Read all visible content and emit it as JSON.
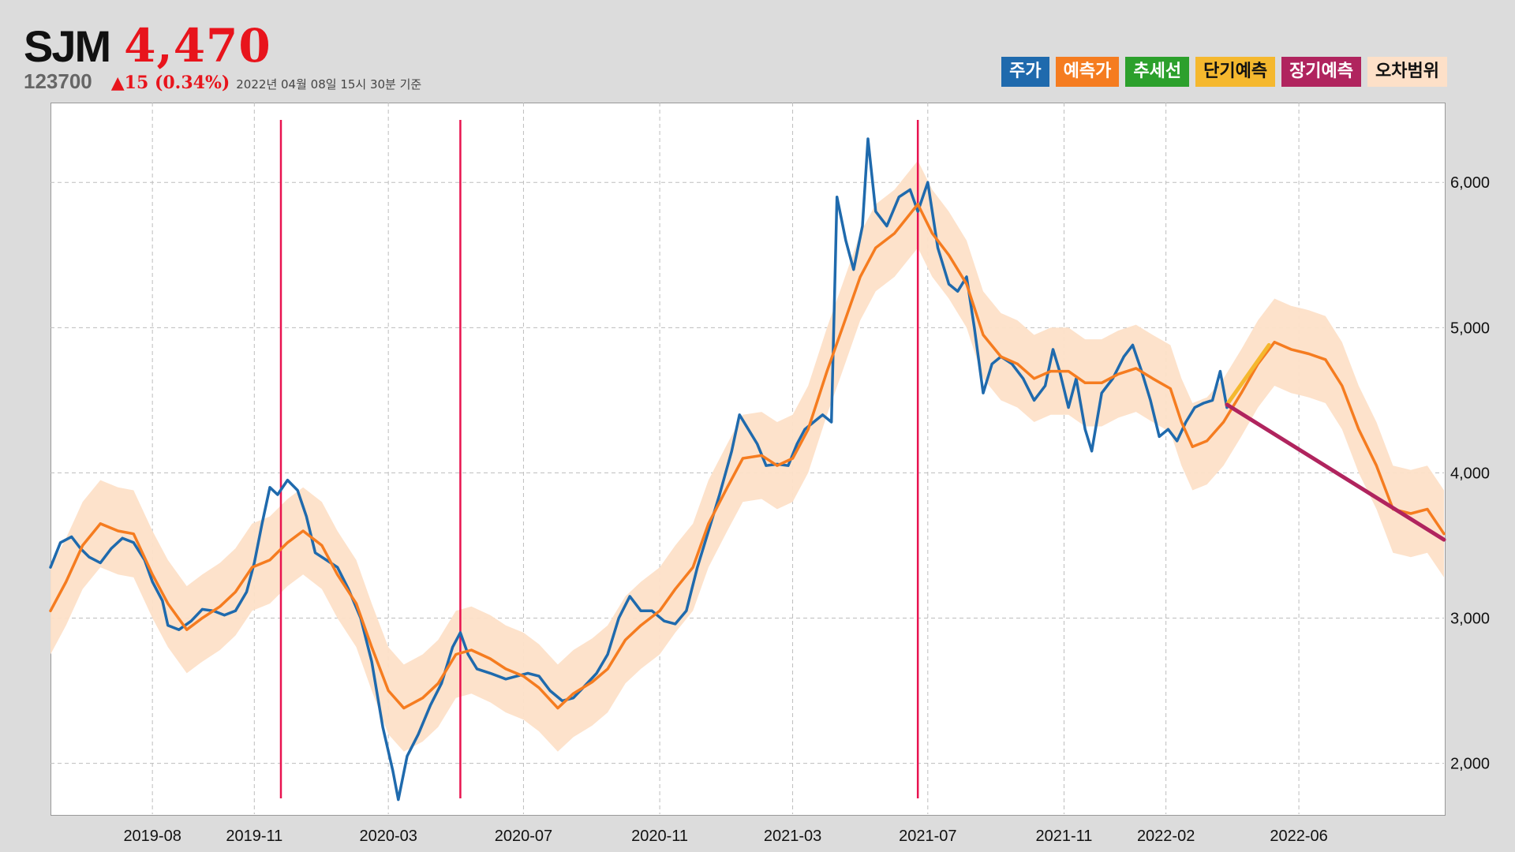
{
  "header": {
    "ticker": "SJM",
    "price": "4,470",
    "code": "123700",
    "change": "▲15 (0.34%)",
    "timestamp": "2022년 04월 08일 15시 30분 기준"
  },
  "legend": [
    {
      "label": "주가",
      "color": "#1f6aad",
      "text_color": "#ffffff"
    },
    {
      "label": "예측가",
      "color": "#f57c20",
      "text_color": "#ffffff"
    },
    {
      "label": "추세선",
      "color": "#2ca02c",
      "text_color": "#ffffff"
    },
    {
      "label": "단기예측",
      "color": "#f5b82e",
      "text_color": "#111111"
    },
    {
      "label": "장기예측",
      "color": "#b0245e",
      "text_color": "#ffffff"
    },
    {
      "label": "오차범위",
      "color": "#fde0c8",
      "text_color": "#111111"
    }
  ],
  "chart_data": {
    "type": "line",
    "title": "",
    "xlabel": "",
    "ylabel": "",
    "x_ticks": [
      "2019-08",
      "2019-11",
      "2020-03",
      "2020-07",
      "2020-11",
      "2021-03",
      "2021-07",
      "2021-11",
      "2022-02",
      "2022-06"
    ],
    "y_ticks": [
      "2,000",
      "3,000",
      "4,000",
      "5,000",
      "6,000"
    ],
    "x_range": [
      "2019-05-01",
      "2022-10-10"
    ],
    "ylim": [
      1650,
      6550
    ],
    "grid": true,
    "y_axis_position": "right",
    "vertical_markers": [
      "2019-11-25",
      "2020-05-05",
      "2021-06-22"
    ],
    "series": [
      {
        "name": "주가",
        "color": "#1f6aad",
        "points": [
          [
            "2019-05-01",
            3350
          ],
          [
            "2019-05-10",
            3520
          ],
          [
            "2019-05-20",
            3560
          ],
          [
            "2019-05-28",
            3480
          ],
          [
            "2019-06-05",
            3420
          ],
          [
            "2019-06-15",
            3380
          ],
          [
            "2019-06-25",
            3480
          ],
          [
            "2019-07-05",
            3550
          ],
          [
            "2019-07-15",
            3520
          ],
          [
            "2019-07-25",
            3400
          ],
          [
            "2019-08-01",
            3250
          ],
          [
            "2019-08-10",
            3120
          ],
          [
            "2019-08-15",
            2950
          ],
          [
            "2019-08-25",
            2920
          ],
          [
            "2019-09-05",
            2980
          ],
          [
            "2019-09-15",
            3060
          ],
          [
            "2019-09-25",
            3050
          ],
          [
            "2019-10-05",
            3020
          ],
          [
            "2019-10-15",
            3050
          ],
          [
            "2019-10-25",
            3180
          ],
          [
            "2019-11-01",
            3380
          ],
          [
            "2019-11-08",
            3650
          ],
          [
            "2019-11-15",
            3900
          ],
          [
            "2019-11-22",
            3850
          ],
          [
            "2019-12-01",
            3950
          ],
          [
            "2019-12-10",
            3880
          ],
          [
            "2019-12-18",
            3700
          ],
          [
            "2019-12-26",
            3450
          ],
          [
            "2020-01-05",
            3400
          ],
          [
            "2020-01-15",
            3350
          ],
          [
            "2020-01-25",
            3200
          ],
          [
            "2020-02-05",
            3000
          ],
          [
            "2020-02-15",
            2700
          ],
          [
            "2020-02-25",
            2250
          ],
          [
            "2020-03-05",
            1950
          ],
          [
            "2020-03-10",
            1750
          ],
          [
            "2020-03-18",
            2050
          ],
          [
            "2020-03-28",
            2200
          ],
          [
            "2020-04-08",
            2400
          ],
          [
            "2020-04-18",
            2550
          ],
          [
            "2020-04-28",
            2800
          ],
          [
            "2020-05-05",
            2900
          ],
          [
            "2020-05-12",
            2750
          ],
          [
            "2020-05-20",
            2650
          ],
          [
            "2020-06-01",
            2620
          ],
          [
            "2020-06-15",
            2580
          ],
          [
            "2020-06-25",
            2600
          ],
          [
            "2020-07-05",
            2620
          ],
          [
            "2020-07-15",
            2600
          ],
          [
            "2020-07-25",
            2500
          ],
          [
            "2020-08-05",
            2430
          ],
          [
            "2020-08-15",
            2450
          ],
          [
            "2020-08-25",
            2530
          ],
          [
            "2020-09-05",
            2620
          ],
          [
            "2020-09-15",
            2750
          ],
          [
            "2020-09-25",
            3000
          ],
          [
            "2020-10-05",
            3150
          ],
          [
            "2020-10-15",
            3050
          ],
          [
            "2020-10-25",
            3050
          ],
          [
            "2020-11-05",
            2980
          ],
          [
            "2020-11-15",
            2960
          ],
          [
            "2020-11-25",
            3050
          ],
          [
            "2020-12-05",
            3350
          ],
          [
            "2020-12-15",
            3600
          ],
          [
            "2020-12-25",
            3850
          ],
          [
            "2021-01-05",
            4150
          ],
          [
            "2021-01-12",
            4400
          ],
          [
            "2021-01-20",
            4300
          ],
          [
            "2021-01-28",
            4200
          ],
          [
            "2021-02-05",
            4050
          ],
          [
            "2021-02-15",
            4060
          ],
          [
            "2021-02-25",
            4050
          ],
          [
            "2021-03-05",
            4200
          ],
          [
            "2021-03-12",
            4300
          ],
          [
            "2021-03-20",
            4350
          ],
          [
            "2021-03-28",
            4400
          ],
          [
            "2021-04-05",
            4350
          ],
          [
            "2021-04-10",
            5900
          ],
          [
            "2021-04-18",
            5600
          ],
          [
            "2021-04-25",
            5400
          ],
          [
            "2021-05-03",
            5700
          ],
          [
            "2021-05-08",
            6300
          ],
          [
            "2021-05-15",
            5800
          ],
          [
            "2021-05-25",
            5700
          ],
          [
            "2021-06-05",
            5900
          ],
          [
            "2021-06-15",
            5950
          ],
          [
            "2021-06-22",
            5800
          ],
          [
            "2021-07-01",
            6000
          ],
          [
            "2021-07-10",
            5550
          ],
          [
            "2021-07-20",
            5300
          ],
          [
            "2021-07-28",
            5250
          ],
          [
            "2021-08-05",
            5350
          ],
          [
            "2021-08-12",
            5000
          ],
          [
            "2021-08-20",
            4550
          ],
          [
            "2021-08-28",
            4750
          ],
          [
            "2021-09-05",
            4800
          ],
          [
            "2021-09-15",
            4750
          ],
          [
            "2021-09-25",
            4650
          ],
          [
            "2021-10-05",
            4500
          ],
          [
            "2021-10-15",
            4600
          ],
          [
            "2021-10-22",
            4850
          ],
          [
            "2021-10-28",
            4700
          ],
          [
            "2021-11-05",
            4450
          ],
          [
            "2021-11-12",
            4650
          ],
          [
            "2021-11-20",
            4300
          ],
          [
            "2021-11-26",
            4150
          ],
          [
            "2021-12-05",
            4550
          ],
          [
            "2021-12-15",
            4650
          ],
          [
            "2021-12-25",
            4800
          ],
          [
            "2022-01-02",
            4880
          ],
          [
            "2022-01-10",
            4700
          ],
          [
            "2022-01-18",
            4500
          ],
          [
            "2022-01-26",
            4250
          ],
          [
            "2022-02-03",
            4300
          ],
          [
            "2022-02-11",
            4220
          ],
          [
            "2022-02-19",
            4350
          ],
          [
            "2022-02-27",
            4450
          ],
          [
            "2022-03-07",
            4480
          ],
          [
            "2022-03-15",
            4500
          ],
          [
            "2022-03-22",
            4700
          ],
          [
            "2022-03-28",
            4450
          ]
        ]
      },
      {
        "name": "예측가",
        "color": "#f57c20",
        "points": [
          [
            "2019-05-01",
            3050
          ],
          [
            "2019-05-15",
            3250
          ],
          [
            "2019-05-30",
            3500
          ],
          [
            "2019-06-15",
            3650
          ],
          [
            "2019-07-01",
            3600
          ],
          [
            "2019-07-15",
            3580
          ],
          [
            "2019-08-01",
            3300
          ],
          [
            "2019-08-15",
            3100
          ],
          [
            "2019-09-01",
            2920
          ],
          [
            "2019-09-15",
            3000
          ],
          [
            "2019-10-01",
            3080
          ],
          [
            "2019-10-15",
            3180
          ],
          [
            "2019-10-30",
            3350
          ],
          [
            "2019-11-15",
            3400
          ],
          [
            "2019-12-01",
            3520
          ],
          [
            "2019-12-15",
            3600
          ],
          [
            "2020-01-01",
            3500
          ],
          [
            "2020-01-15",
            3300
          ],
          [
            "2020-02-01",
            3100
          ],
          [
            "2020-02-15",
            2800
          ],
          [
            "2020-03-01",
            2500
          ],
          [
            "2020-03-15",
            2380
          ],
          [
            "2020-04-01",
            2450
          ],
          [
            "2020-04-15",
            2550
          ],
          [
            "2020-05-01",
            2750
          ],
          [
            "2020-05-15",
            2780
          ],
          [
            "2020-06-01",
            2720
          ],
          [
            "2020-06-15",
            2650
          ],
          [
            "2020-07-01",
            2600
          ],
          [
            "2020-07-15",
            2520
          ],
          [
            "2020-08-01",
            2380
          ],
          [
            "2020-08-15",
            2480
          ],
          [
            "2020-09-01",
            2560
          ],
          [
            "2020-09-15",
            2650
          ],
          [
            "2020-10-01",
            2850
          ],
          [
            "2020-10-15",
            2950
          ],
          [
            "2020-11-01",
            3050
          ],
          [
            "2020-11-15",
            3200
          ],
          [
            "2020-12-01",
            3350
          ],
          [
            "2020-12-15",
            3650
          ],
          [
            "2021-01-01",
            3900
          ],
          [
            "2021-01-15",
            4100
          ],
          [
            "2021-02-01",
            4120
          ],
          [
            "2021-02-15",
            4050
          ],
          [
            "2021-03-01",
            4100
          ],
          [
            "2021-03-15",
            4300
          ],
          [
            "2021-04-01",
            4700
          ],
          [
            "2021-04-15",
            5000
          ],
          [
            "2021-05-01",
            5350
          ],
          [
            "2021-05-15",
            5550
          ],
          [
            "2021-06-01",
            5650
          ],
          [
            "2021-06-22",
            5850
          ],
          [
            "2021-07-05",
            5650
          ],
          [
            "2021-07-20",
            5500
          ],
          [
            "2021-08-05",
            5300
          ],
          [
            "2021-08-20",
            4950
          ],
          [
            "2021-09-05",
            4800
          ],
          [
            "2021-09-20",
            4750
          ],
          [
            "2021-10-05",
            4650
          ],
          [
            "2021-10-20",
            4700
          ],
          [
            "2021-11-05",
            4700
          ],
          [
            "2021-11-20",
            4620
          ],
          [
            "2021-12-05",
            4620
          ],
          [
            "2021-12-20",
            4680
          ],
          [
            "2022-01-05",
            4720
          ],
          [
            "2022-01-20",
            4650
          ],
          [
            "2022-02-05",
            4580
          ],
          [
            "2022-02-15",
            4350
          ],
          [
            "2022-02-25",
            4180
          ],
          [
            "2022-03-10",
            4220
          ],
          [
            "2022-03-25",
            4350
          ],
          [
            "2022-04-10",
            4550
          ],
          [
            "2022-04-25",
            4750
          ],
          [
            "2022-05-10",
            4900
          ],
          [
            "2022-05-25",
            4850
          ],
          [
            "2022-06-10",
            4820
          ],
          [
            "2022-06-25",
            4780
          ],
          [
            "2022-07-10",
            4600
          ],
          [
            "2022-07-25",
            4300
          ],
          [
            "2022-08-10",
            4050
          ],
          [
            "2022-08-25",
            3750
          ],
          [
            "2022-09-10",
            3720
          ],
          [
            "2022-09-25",
            3750
          ],
          [
            "2022-10-10",
            3580
          ]
        ]
      },
      {
        "name": "단기예측",
        "color": "#f5b82e",
        "points": [
          [
            "2022-03-28",
            4470
          ],
          [
            "2022-05-05",
            4880
          ]
        ]
      },
      {
        "name": "장기예측",
        "color": "#b0245e",
        "points": [
          [
            "2022-03-28",
            4470
          ],
          [
            "2022-10-10",
            3540
          ]
        ]
      }
    ],
    "error_band_half_width": 300
  }
}
